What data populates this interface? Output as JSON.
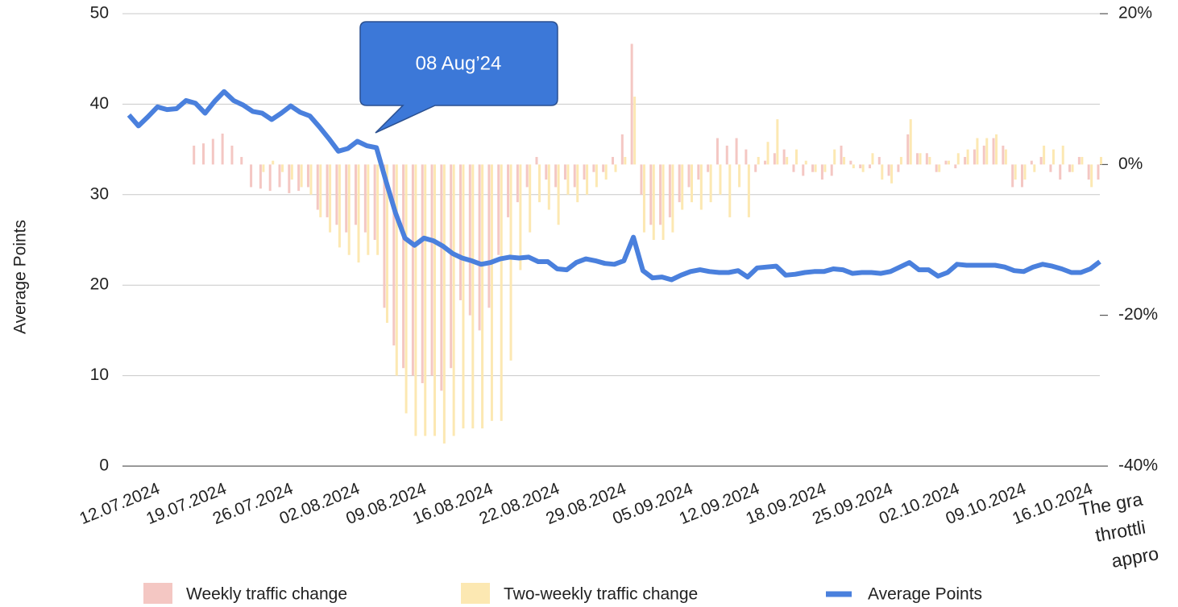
{
  "chart_data": {
    "type": "combo",
    "annotation": "08 Aug’24",
    "y_label": "Average Points",
    "side_text": [
      "The gra",
      "throttli",
      "appro"
    ],
    "categories": [
      null,
      null,
      "12.07.2024",
      null,
      null,
      null,
      null,
      null,
      null,
      "19.07.2024",
      null,
      null,
      null,
      null,
      null,
      null,
      "26.07.2024",
      null,
      null,
      null,
      null,
      null,
      null,
      "02.08.2024",
      null,
      null,
      null,
      null,
      null,
      null,
      "09.08.2024",
      null,
      null,
      null,
      null,
      null,
      null,
      "16.08.2024",
      null,
      null,
      null,
      null,
      null,
      null,
      "22.08.2024",
      null,
      null,
      null,
      null,
      null,
      null,
      "29.08.2024",
      null,
      null,
      null,
      null,
      null,
      null,
      "05.09.2024",
      null,
      null,
      null,
      null,
      null,
      null,
      "12.09.2024",
      null,
      null,
      null,
      null,
      null,
      null,
      "18.09.2024",
      null,
      null,
      null,
      null,
      null,
      null,
      "25.09.2024",
      null,
      null,
      null,
      null,
      null,
      null,
      "02.10.2024",
      null,
      null,
      null,
      null,
      null,
      null,
      "09.10.2024",
      null,
      null,
      null,
      null,
      null,
      null,
      "16.10.2024",
      null,
      null
    ],
    "series": [
      {
        "name": "Weekly traffic change",
        "type": "bar",
        "axis": "y2",
        "color": "#f4c7c3",
        "values": [
          null,
          null,
          null,
          null,
          null,
          null,
          null,
          2.5,
          2.8,
          3.4,
          4.1,
          2.5,
          1.0,
          -3,
          -3.2,
          -3.5,
          -3,
          -3.8,
          -3.5,
          -3,
          -6,
          -7,
          -8,
          -9,
          -8,
          -9,
          -10,
          -19,
          -24,
          -27,
          -28,
          -29,
          -28,
          -30,
          -27,
          -18,
          -20,
          -22,
          -19,
          -12,
          -7,
          -5,
          -3,
          1,
          -2,
          -3,
          -2,
          -3,
          -2,
          -1,
          -1,
          1,
          4,
          16,
          -4,
          -8,
          -8,
          -7,
          -5,
          -3,
          -2,
          -1,
          3.5,
          2.5,
          3.5,
          2,
          -1,
          0.5,
          1.5,
          2,
          -1,
          -1.5,
          -1,
          -2,
          -1.5,
          2.5,
          0.5,
          -0.5,
          -0.5,
          1,
          -1.5,
          -1,
          4,
          1.5,
          1.5,
          -1,
          0.5,
          -0.5,
          1,
          2,
          2.5,
          3.5,
          2.5,
          -3,
          -3,
          0.5,
          1,
          -1,
          -2,
          -1,
          1,
          -2,
          -2
        ]
      },
      {
        "name": "Two-weekly traffic change",
        "type": "bar",
        "axis": "y2",
        "color": "#fce8b2",
        "values": [
          null,
          null,
          null,
          null,
          null,
          null,
          null,
          null,
          null,
          null,
          null,
          null,
          null,
          null,
          -1,
          0.5,
          -1,
          -2,
          -3,
          -4,
          -7,
          -9,
          -11,
          -12,
          -13,
          -12,
          -12,
          -21,
          -28,
          -33,
          -36,
          -36,
          -36,
          -37,
          -36,
          -35,
          -35,
          -35,
          -34,
          -34,
          -26,
          -14,
          -9,
          -5,
          -6,
          -8,
          -4,
          -5,
          -4,
          -3,
          -2,
          -1,
          1,
          9,
          -9,
          -10,
          -10,
          -9,
          -6,
          -5,
          -6,
          -5,
          -4,
          -7,
          -3,
          -7,
          1,
          3,
          6,
          1,
          2,
          0.5,
          -1,
          -1,
          2,
          1,
          -0.5,
          -1,
          1.5,
          -2,
          -2.5,
          1,
          6,
          1.5,
          1,
          -1,
          0.5,
          1.5,
          2,
          3.5,
          3.5,
          4,
          2,
          -2,
          -2,
          -1,
          2.5,
          2,
          2.5,
          -1,
          1,
          -3,
          1
        ]
      },
      {
        "name": "Average Points",
        "type": "line",
        "axis": "y",
        "color": "#4a80dd",
        "values": [
          38.8,
          37.6,
          38.6,
          39.7,
          39.4,
          39.5,
          40.4,
          40.1,
          39.0,
          40.3,
          41.4,
          40.4,
          39.9,
          39.2,
          39.0,
          38.3,
          39.0,
          39.8,
          39.1,
          38.7,
          37.5,
          36.2,
          34.8,
          35.1,
          35.9,
          35.4,
          35.2,
          31.5,
          28.0,
          25.2,
          24.4,
          25.2,
          24.9,
          24.3,
          23.5,
          23.0,
          22.7,
          22.3,
          22.5,
          22.9,
          23.1,
          23.0,
          23.1,
          22.6,
          22.6,
          21.8,
          21.7,
          22.5,
          22.9,
          22.7,
          22.4,
          22.3,
          22.7,
          25.3,
          21.6,
          20.8,
          20.9,
          20.6,
          21.1,
          21.5,
          21.7,
          21.5,
          21.4,
          21.4,
          21.6,
          20.9,
          21.9,
          22.0,
          22.1,
          21.1,
          21.2,
          21.4,
          21.5,
          21.5,
          21.8,
          21.7,
          21.3,
          21.4,
          21.4,
          21.3,
          21.5,
          22.0,
          22.5,
          21.7,
          21.7,
          21.0,
          21.4,
          22.3,
          22.2,
          22.2,
          22.2,
          22.2,
          22.0,
          21.6,
          21.5,
          22.0,
          22.3,
          22.1,
          21.8,
          21.4,
          21.4,
          21.8,
          22.6
        ]
      }
    ],
    "ylim": [
      0,
      50
    ],
    "yticks": [
      0,
      10,
      20,
      30,
      40,
      50
    ],
    "y2lim": [
      -40,
      20
    ],
    "y2ticks": [
      {
        "value": -40,
        "label": "-40%"
      },
      {
        "value": -20,
        "label": "-20%"
      },
      {
        "value": 0,
        "label": "0%"
      },
      {
        "value": 20,
        "label": "20%"
      }
    ],
    "grid": true
  }
}
